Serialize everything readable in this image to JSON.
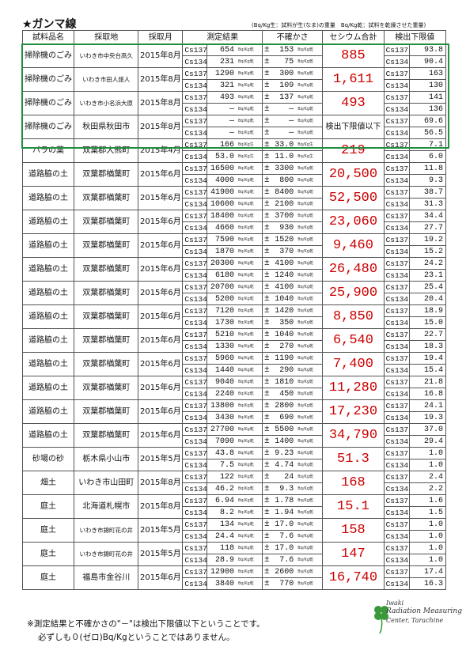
{
  "title": "★ガンマ線",
  "units_note": "(Bq/Kg生：試料が生(なま)の重量　Bq/Kg乾：試料を乾燥させた重量)",
  "headers": {
    "sample": "試料品名",
    "site": "採取地",
    "month": "採取月",
    "result": "測定結果",
    "uncertainty": "不確かさ",
    "total": "セシウム合計",
    "limit": "検出下限値"
  },
  "rows": [
    {
      "sample": "掃除機のごみ",
      "site": "いわき市中央台高久",
      "small": true,
      "month": "2015年8月",
      "cs137": "654",
      "cs134": "231",
      "u137": "153",
      "u134": "75",
      "unit137": "Bq/Kg乾",
      "unit134": "Bq/Kg乾",
      "total": "885",
      "l137": "93.8",
      "l134": "90.4"
    },
    {
      "sample": "掃除機のごみ",
      "site": "いわき市田人旅人",
      "small": true,
      "month": "2015年8月",
      "cs137": "1290",
      "cs134": "321",
      "u137": "300",
      "u134": "109",
      "unit137": "Bq/Kg乾",
      "unit134": "Bq/Kg乾",
      "total": "1,611",
      "l137": "163",
      "l134": "130"
    },
    {
      "sample": "掃除機のごみ",
      "site": "いわき市小名浜大原",
      "small": true,
      "month": "2015年8月",
      "cs137": "493",
      "cs134": "—",
      "u137": "137",
      "u134": "—",
      "unit137": "Bq/Kg乾",
      "unit134": "Bq/Kg乾",
      "total": "493",
      "l137": "141",
      "l134": "136"
    },
    {
      "sample": "掃除機のごみ",
      "site": "秋田県秋田市",
      "small": false,
      "month": "2015年8月",
      "cs137": "—",
      "cs134": "—",
      "u137": "—",
      "u134": "—",
      "unit137": "Bq/Kg乾",
      "unit134": "Bq/Kg乾",
      "total": "検出下限値以下",
      "l137": "69.6",
      "l134": "56.5"
    },
    {
      "sample": "バラの葉",
      "site": "双葉郡大熊町",
      "small": false,
      "month": "2015年4月",
      "cs137": "166",
      "cs134": "53.0",
      "u137": "33.0",
      "u134": "11.0",
      "unit137": "Bq/Kg生",
      "unit134": "Bq/Kg生",
      "total": "219",
      "l137": "7.1",
      "l134": "6.0"
    },
    {
      "sample": "道路脇の土",
      "site": "双葉郡楢葉町",
      "small": false,
      "month": "2015年6月",
      "cs137": "16500",
      "cs134": "4000",
      "u137": "3300",
      "u134": "800",
      "unit137": "Bq/Kg乾",
      "unit134": "Bq/Kg乾",
      "total": "20,500",
      "l137": "11.8",
      "l134": "9.3"
    },
    {
      "sample": "道路脇の土",
      "site": "双葉郡楢葉町",
      "small": false,
      "month": "2015年6月",
      "cs137": "41900",
      "cs134": "10600",
      "u137": "8400",
      "u134": "2100",
      "unit137": "Bq/Kg乾",
      "unit134": "Bq/Kg乾",
      "total": "52,500",
      "l137": "38.7",
      "l134": "31.3"
    },
    {
      "sample": "道路脇の土",
      "site": "双葉郡楢葉町",
      "small": false,
      "month": "2015年6月",
      "cs137": "18400",
      "cs134": "4660",
      "u137": "3700",
      "u134": "930",
      "unit137": "Bq/Kg乾",
      "unit134": "Bq/Kg乾",
      "total": "23,060",
      "l137": "34.4",
      "l134": "27.7"
    },
    {
      "sample": "道路脇の土",
      "site": "双葉郡楢葉町",
      "small": false,
      "month": "2015年6月",
      "cs137": "7590",
      "cs134": "1870",
      "u137": "1520",
      "u134": "370",
      "unit137": "Bq/Kg乾",
      "unit134": "Bq/Kg乾",
      "total": "9,460",
      "l137": "19.2",
      "l134": "15.2"
    },
    {
      "sample": "道路脇の土",
      "site": "双葉郡楢葉町",
      "small": false,
      "month": "2015年6月",
      "cs137": "20300",
      "cs134": "6180",
      "u137": "4100",
      "u134": "1240",
      "unit137": "Bq/Kg乾",
      "unit134": "Bq/Kg乾",
      "total": "26,480",
      "l137": "24.2",
      "l134": "23.1"
    },
    {
      "sample": "道路脇の土",
      "site": "双葉郡楢葉町",
      "small": false,
      "month": "2015年6月",
      "cs137": "20700",
      "cs134": "5200",
      "u137": "4100",
      "u134": "1040",
      "unit137": "Bq/Kg乾",
      "unit134": "Bq/Kg乾",
      "total": "25,900",
      "l137": "25.4",
      "l134": "20.4"
    },
    {
      "sample": "道路脇の土",
      "site": "双葉郡楢葉町",
      "small": false,
      "month": "2015年6月",
      "cs137": "7120",
      "cs134": "1730",
      "u137": "1420",
      "u134": "350",
      "unit137": "Bq/Kg乾",
      "unit134": "Bq/Kg乾",
      "total": "8,850",
      "l137": "18.9",
      "l134": "15.0"
    },
    {
      "sample": "道路脇の土",
      "site": "双葉郡楢葉町",
      "small": false,
      "month": "2015年6月",
      "cs137": "5210",
      "cs134": "1330",
      "u137": "1040",
      "u134": "270",
      "unit137": "Bq/Kg乾",
      "unit134": "Bq/Kg乾",
      "total": "6,540",
      "l137": "22.7",
      "l134": "18.3"
    },
    {
      "sample": "道路脇の土",
      "site": "双葉郡楢葉町",
      "small": false,
      "month": "2015年6月",
      "cs137": "5960",
      "cs134": "1440",
      "u137": "1190",
      "u134": "290",
      "unit137": "Bq/Kg乾",
      "unit134": "Bq/Kg乾",
      "total": "7,400",
      "l137": "19.4",
      "l134": "15.4"
    },
    {
      "sample": "道路脇の土",
      "site": "双葉郡楢葉町",
      "small": false,
      "month": "2015年6月",
      "cs137": "9040",
      "cs134": "2240",
      "u137": "1810",
      "u134": "450",
      "unit137": "Bq/Kg乾",
      "unit134": "Bq/Kg乾",
      "total": "11,280",
      "l137": "21.8",
      "l134": "16.8"
    },
    {
      "sample": "道路脇の土",
      "site": "双葉郡楢葉町",
      "small": false,
      "month": "2015年6月",
      "cs137": "13800",
      "cs134": "3430",
      "u137": "2800",
      "u134": "690",
      "unit137": "Bq/Kg乾",
      "unit134": "Bq/Kg乾",
      "total": "17,230",
      "l137": "24.1",
      "l134": "19.3"
    },
    {
      "sample": "道路脇の土",
      "site": "双葉郡楢葉町",
      "small": false,
      "month": "2015年6月",
      "cs137": "27700",
      "cs134": "7090",
      "u137": "5500",
      "u134": "1400",
      "unit137": "Bq/Kg乾",
      "unit134": "Bq/Kg乾",
      "total": "34,790",
      "l137": "37.0",
      "l134": "29.4"
    },
    {
      "sample": "砂場の砂",
      "site": "栃木県小山市",
      "small": false,
      "month": "2015年5月",
      "cs137": "43.8",
      "cs134": "7.5",
      "u137": "9.23",
      "u134": "4.74",
      "unit137": "Bq/Kg乾",
      "unit134": "Bq/Kg乾",
      "total": "51.3",
      "l137": "1.0",
      "l134": "1.0"
    },
    {
      "sample": "畑土",
      "site": "いわき市山田町",
      "small": false,
      "month": "2015年8月",
      "cs137": "122",
      "cs134": "46.2",
      "u137": "24",
      "u134": "9.3",
      "unit137": "Bq/Kg乾",
      "unit134": "Bq/Kg乾",
      "total": "168",
      "l137": "2.4",
      "l134": "2.2"
    },
    {
      "sample": "庭土",
      "site": "北海道札幌市",
      "small": false,
      "month": "2015年8月",
      "cs137": "6.94",
      "cs134": "8.2",
      "u137": "1.78",
      "u134": "1.94",
      "unit137": "Bq/Kg乾",
      "unit134": "Bq/Kg乾",
      "total": "15.1",
      "l137": "1.6",
      "l134": "1.5"
    },
    {
      "sample": "庭土",
      "site": "いわき市錦町花の井",
      "small": true,
      "month": "2015年5月",
      "cs137": "134",
      "cs134": "24.4",
      "u137": "17.0",
      "u134": "7.6",
      "unit137": "Bq/Kg乾",
      "unit134": "Bq/Kg乾",
      "total": "158",
      "l137": "1.0",
      "l134": "1.0"
    },
    {
      "sample": "庭土",
      "site": "いわき市錦町花の井",
      "small": true,
      "month": "2015年5月",
      "cs137": "118",
      "cs134": "28.9",
      "u137": "17.0",
      "u134": "7.6",
      "unit137": "Bq/Kg乾",
      "unit134": "Bq/Kg乾",
      "total": "147",
      "l137": "1.0",
      "l134": "1.0"
    },
    {
      "sample": "庭土",
      "site": "福島市金谷川",
      "small": false,
      "month": "2015年6月",
      "cs137": "12900",
      "cs134": "3840",
      "u137": "2600",
      "u134": "770",
      "unit137": "Bq/Kg乾",
      "unit134": "Bq/Kg乾",
      "total": "16,740",
      "l137": "17.4",
      "l134": "16.3"
    }
  ],
  "isotopes": {
    "a": "Cs137",
    "b": "Cs134"
  },
  "pm": "±",
  "notes": {
    "line1": "※測定結果と不確かさの\"－\"は検出下限値以下ということです。",
    "line2": "必ずしも０(ゼロ)Bq/Kgということではありません。"
  },
  "logo": {
    "line1": "Iwaki",
    "line2": "Radiation Measuring",
    "line3": "Center, Tarachine"
  },
  "colors": {
    "total_red": "#c00000",
    "green_box": "#1f8f3f"
  }
}
